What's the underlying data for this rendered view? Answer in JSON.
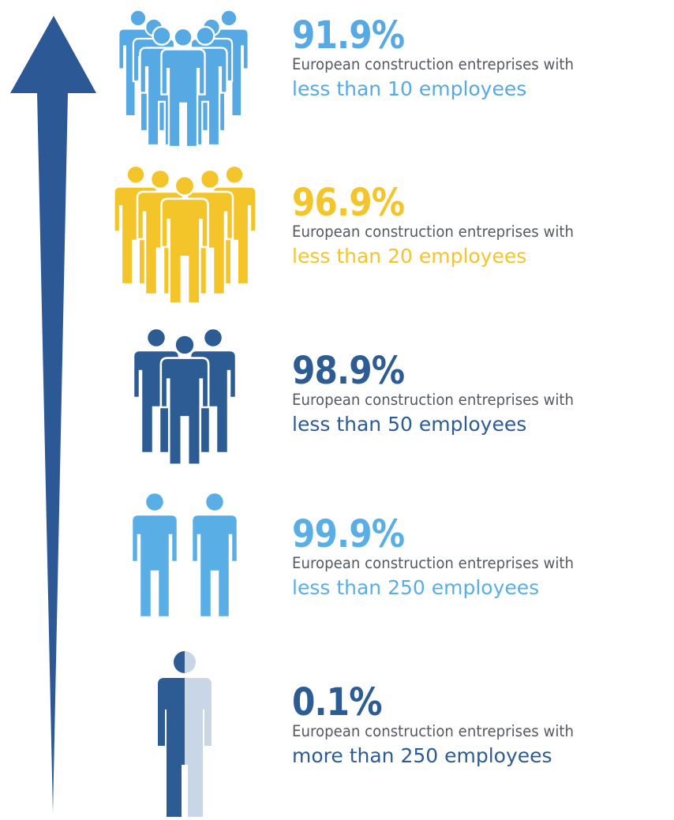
{
  "colors": {
    "arrow": "#2c5896",
    "light_blue": "#57a9e3",
    "sky_blue": "#5aaee6",
    "yellow": "#f4c52a",
    "navy": "#2d5b93",
    "pale": "#c9d6e6"
  },
  "stats": [
    {
      "percent": "91.9%",
      "description": "European construction entreprises with",
      "emphasis": "less than 10 employees",
      "color": "#57a9e3",
      "icon": "crowd-of-seven-people-icon"
    },
    {
      "percent": "96.9%",
      "description": "European construction entreprises with",
      "emphasis": "less than 20 employees",
      "color": "#f4c52a",
      "icon": "group-of-five-people-icon"
    },
    {
      "percent": "98.9%",
      "description": "European construction entreprises with",
      "emphasis": "less than 50 employees",
      "color": "#2d5b93",
      "icon": "group-of-three-people-icon"
    },
    {
      "percent": "99.9%",
      "description": "European construction entreprises with",
      "emphasis": "less than 250 employees",
      "color": "#5aaee6",
      "icon": "two-people-icon"
    },
    {
      "percent": "0.1%",
      "description": "European construction entreprises with",
      "emphasis": "more than 250 employees",
      "color": "#2d5b93",
      "icon": "half-person-icon"
    }
  ]
}
